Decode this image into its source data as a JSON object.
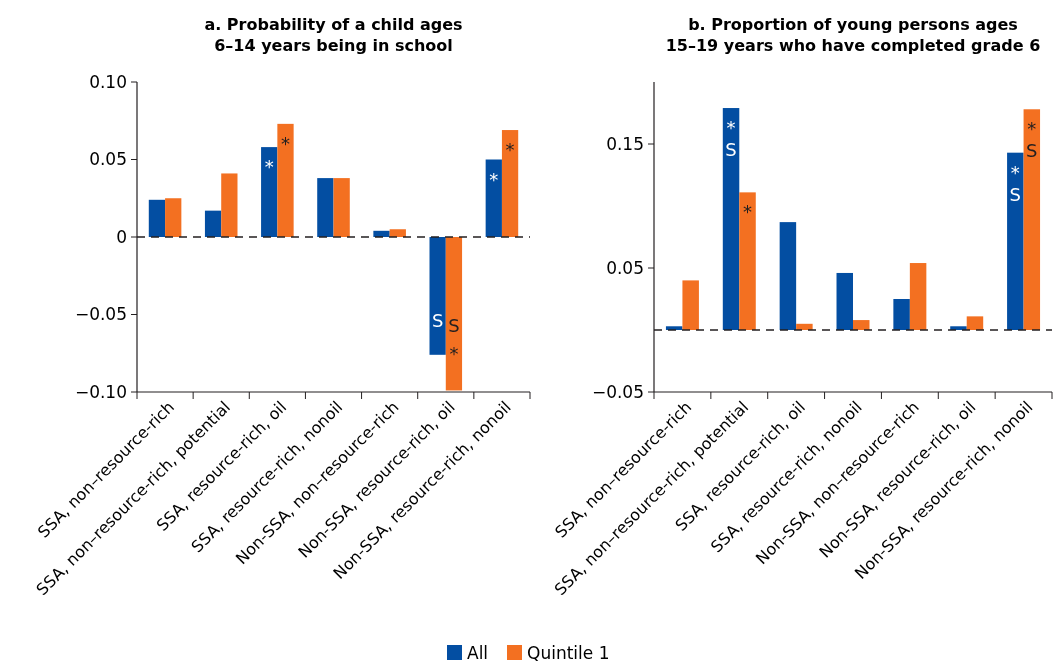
{
  "chart_data": [
    {
      "type": "bar",
      "title": "a. Probability of a child ages\n6–14 years being in school",
      "categories": [
        "SSA, non–resource-rich",
        "SSA, non–resource-rich, potential",
        "SSA, resource-rich, oil",
        "SSA, resource-rich, nonoil",
        "Non-SSA, non–resource-rich",
        "Non-SSA, resource-rich, oil",
        "Non-SSA, resource-rich, nonoil"
      ],
      "series": [
        {
          "name": "All",
          "color": "#034ea2",
          "values": [
            0.024,
            0.017,
            0.058,
            0.038,
            0.004,
            -0.076,
            0.05
          ],
          "value_labels": [
            null,
            null,
            "*",
            null,
            null,
            "S",
            "*"
          ]
        },
        {
          "name": "Quintile 1",
          "color": "#f37021",
          "values": [
            0.025,
            0.041,
            0.073,
            0.038,
            0.005,
            -0.099,
            0.069
          ],
          "value_labels": [
            null,
            null,
            "*",
            null,
            null,
            "S *",
            "*"
          ]
        }
      ],
      "ylim": [
        -0.1,
        0.1
      ],
      "yticks": [
        {
          "value": -0.1,
          "label": "−0.10"
        },
        {
          "value": -0.05,
          "label": "−0.05"
        },
        0,
        0.05,
        {
          "value": 0.1,
          "label": "0.10"
        }
      ],
      "ref_lines": [
        {
          "axis": "y",
          "value": 0,
          "line_style": "dashed"
        }
      ],
      "grid": false,
      "legend": "bottom"
    },
    {
      "type": "bar",
      "title": "b. Proportion of young persons ages\n15–19 years who have completed grade 6",
      "categories": [
        "SSA, non–resource-rich",
        "SSA, non–resource-rich, potential",
        "SSA, resource-rich, oil",
        "SSA, resource-rich, nonoil",
        "Non-SSA, non–resource-rich",
        "Non-SSA, resource-rich, oil",
        "Non-SSA, resource-rich, nonoil"
      ],
      "series": [
        {
          "color": "#034ea2",
          "values": [
            0.003,
            0.179,
            0.087,
            0.046,
            0.025,
            0.003,
            0.143
          ],
          "value_labels": [
            null,
            "* S",
            null,
            null,
            null,
            null,
            "* S"
          ]
        },
        {
          "color": "#f37021",
          "values": [
            0.04,
            0.111,
            0.005,
            0.008,
            0.054,
            0.011,
            0.178
          ],
          "value_labels": [
            null,
            "*",
            null,
            null,
            null,
            null,
            "* S"
          ]
        }
      ],
      "ylim": [
        -0.05,
        0.2
      ],
      "yticks": [
        {
          "value": -0.05,
          "label": "−0.05"
        },
        0.05,
        0.15
      ],
      "ref_lines": [
        {
          "axis": "y",
          "value": 0,
          "line_style": "dashed"
        }
      ],
      "grid": false
    }
  ]
}
